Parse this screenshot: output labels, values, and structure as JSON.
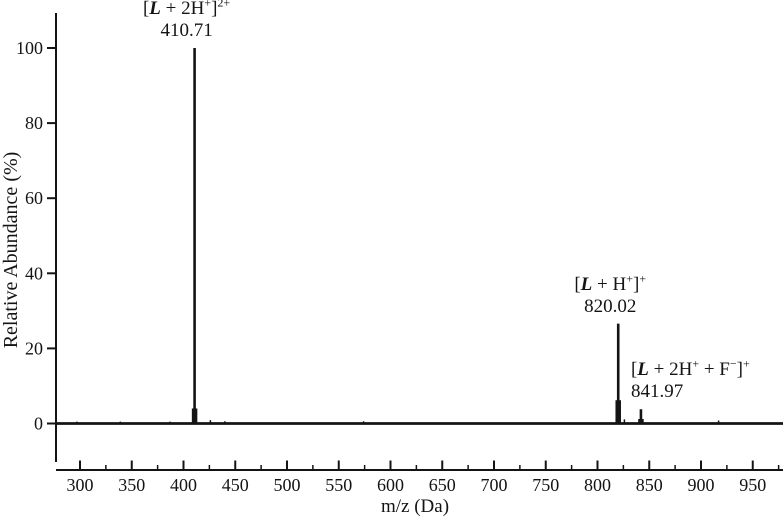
{
  "figure": {
    "background": "#ffffff",
    "ink_color": "#141414"
  },
  "chart_data": {
    "type": "line",
    "subtype": "mass-spectrum-stick-plot",
    "title": "",
    "xlabel": "m/z (Da)",
    "ylabel": "Relative Abundance (%)",
    "xlim": [
      278,
      982
    ],
    "ylim": [
      -10,
      110
    ],
    "x_major_ticks": [
      300,
      350,
      400,
      450,
      500,
      550,
      600,
      650,
      700,
      750,
      800,
      850,
      900,
      950
    ],
    "x_minor_tick_step": 25,
    "y_ticks": [
      0,
      20,
      40,
      60,
      80,
      100
    ],
    "grid": false,
    "legend": false,
    "peaks": [
      {
        "mz": 410.71,
        "intensity_pct": 100,
        "mz_label": "410.71",
        "species_text": "[L + 2H+]2+",
        "species_parts": [
          [
            "[",
            ""
          ],
          [
            "L",
            "bolditalic"
          ],
          [
            " + 2H",
            ""
          ],
          [
            "+",
            "sup"
          ],
          [
            "]",
            ""
          ],
          [
            "2+",
            "sup"
          ]
        ],
        "label_placement": "center-above",
        "base_spread_pct": 4
      },
      {
        "mz": 820.02,
        "intensity_pct": 26.6,
        "mz_label": "820.02",
        "species_text": "[L + H+]+",
        "species_parts": [
          [
            "[",
            ""
          ],
          [
            "L",
            "bolditalic"
          ],
          [
            " + H",
            ""
          ],
          [
            "+",
            "sup"
          ],
          [
            "]",
            ""
          ],
          [
            "+",
            "sup"
          ]
        ],
        "label_placement": "center-above",
        "base_spread_pct": 6.2
      },
      {
        "mz": 841.97,
        "intensity_pct": 3.8,
        "mz_label": "841.97",
        "species_text": "[L + 2H+ + F−]+",
        "species_parts": [
          [
            "[",
            ""
          ],
          [
            "L",
            "bolditalic"
          ],
          [
            " + 2H",
            ""
          ],
          [
            "+",
            "sup"
          ],
          [
            " + F",
            ""
          ],
          [
            "−",
            "sup"
          ],
          [
            "]",
            ""
          ],
          [
            "+",
            "sup"
          ]
        ],
        "label_placement": "left-above",
        "base_spread_pct": 1.2
      }
    ],
    "noise_points": [
      {
        "mz": 297,
        "intensity_pct": 0.5
      },
      {
        "mz": 339,
        "intensity_pct": 0.5
      },
      {
        "mz": 387,
        "intensity_pct": 0.5
      },
      {
        "mz": 426,
        "intensity_pct": 0.9
      },
      {
        "mz": 440,
        "intensity_pct": 0.6
      },
      {
        "mz": 574,
        "intensity_pct": 0.6
      },
      {
        "mz": 826,
        "intensity_pct": 1.1
      },
      {
        "mz": 917,
        "intensity_pct": 0.8
      }
    ]
  }
}
